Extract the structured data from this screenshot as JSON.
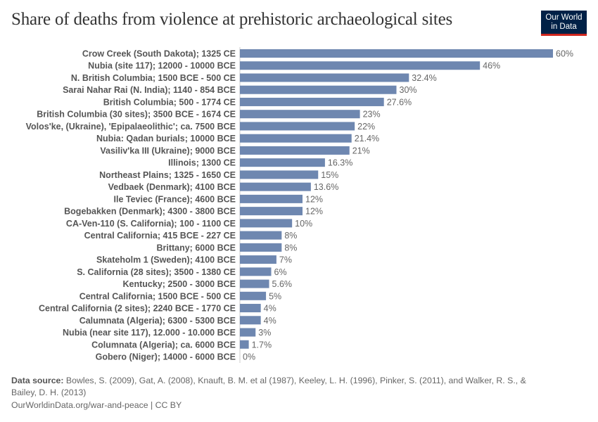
{
  "title": "Share of deaths from violence at prehistoric archaeological sites",
  "logo": {
    "line1": "Our World",
    "line2": "in Data",
    "bg": "#002147",
    "accent": "#ce261e"
  },
  "chart_data": {
    "type": "bar",
    "orientation": "horizontal",
    "bar_color": "#6e87b0",
    "xlim": [
      0,
      60
    ],
    "value_suffix": "%",
    "categories": [
      "Crow Creek (South Dakota); 1325 CE",
      "Nubia (site 117); 12000 - 10000 BCE",
      "N. British Columbia; 1500 BCE - 500 CE",
      "Sarai Nahar Rai (N. India); 1140 - 854 BCE",
      "British Columbia; 500 - 1774 CE",
      "British Columbia (30 sites); 3500 BCE - 1674 CE",
      "Volos'ke, (Ukraine), 'Epipalaeolithic'; ca. 7500 BCE",
      "Nubia: Qadan burials; 10000 BCE",
      "Vasiliv'ka III (Ukraine); 9000 BCE",
      "Illinois; 1300 CE",
      "Northeast Plains; 1325 - 1650 CE",
      "Vedbaek (Denmark); 4100 BCE",
      "Ile Teviec (France); 4600 BCE",
      "Bogebakken (Denmark); 4300 - 3800 BCE",
      "CA-Ven-110 (S. California); 100 - 1100 CE",
      "Central California; 415 BCE - 227 CE",
      "Brittany; 6000 BCE",
      "Skateholm 1 (Sweden); 4100 BCE",
      "S. California (28 sites); 3500 - 1380 CE",
      "Kentucky; 2500 - 3000 BCE",
      "Central California; 1500 BCE - 500 CE",
      "Central California (2 sites); 2240 BCE - 1770 CE",
      "Calumnata (Algeria); 6300 - 5300 BCE",
      "Nubia (near site 117), 12.000 - 10.000 BCE",
      "Columnata (Algeria); ca. 6000 BCE",
      "Gobero (Niger); 14000 - 6000 BCE"
    ],
    "values": [
      60,
      46,
      32.4,
      30,
      27.6,
      23,
      22,
      21.4,
      21,
      16.3,
      15,
      13.6,
      12,
      12,
      10,
      8,
      8,
      7,
      6,
      5.6,
      5,
      4,
      4,
      3,
      1.7,
      0
    ],
    "value_labels": [
      "60%",
      "46%",
      "32.4%",
      "30%",
      "27.6%",
      "23%",
      "22%",
      "21.4%",
      "21%",
      "16.3%",
      "15%",
      "13.6%",
      "12%",
      "12%",
      "10%",
      "8%",
      "8%",
      "7%",
      "6%",
      "5.6%",
      "5%",
      "4%",
      "4%",
      "3%",
      "1.7%",
      "0%"
    ]
  },
  "source": {
    "label": "Data source:",
    "text": "Bowles, S. (2009), Gat, A. (2008), Knauft, B. M. et al (1987), Keeley, L. H. (1996), Pinker, S. (2011), and Walker, R. S., & Bailey, D. H. (2013)"
  },
  "footer": "OurWorldinData.org/war-and-peace | CC BY"
}
